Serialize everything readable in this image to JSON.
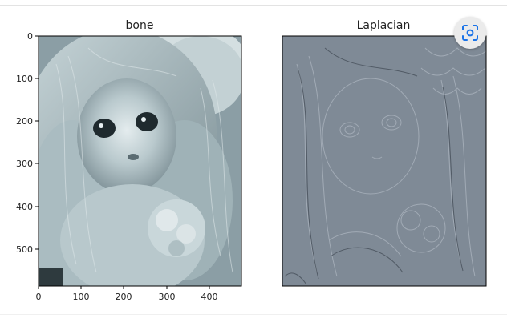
{
  "figure": {
    "panels": [
      {
        "title": "bone"
      },
      {
        "title": "Laplacian"
      }
    ],
    "colors": {
      "bone_image_mid": "#9aaeb5",
      "laplacian_gray": "#7f8a96",
      "lens_blue": "#1a73e8"
    }
  },
  "toolbar": {
    "lens_icon": "google-lens-search-icon"
  },
  "chart_data": [
    {
      "type": "image",
      "title": "bone",
      "xlabel": "",
      "ylabel": "",
      "xlim": [
        0,
        475
      ],
      "ylim": [
        590,
        0
      ],
      "x_ticks": [
        "0",
        "100",
        "200",
        "300",
        "400"
      ],
      "y_ticks": [
        "0",
        "100",
        "200",
        "300",
        "400",
        "500"
      ]
    },
    {
      "type": "image",
      "title": "Laplacian",
      "xlabel": "",
      "ylabel": "",
      "axes_ticks": false
    }
  ]
}
